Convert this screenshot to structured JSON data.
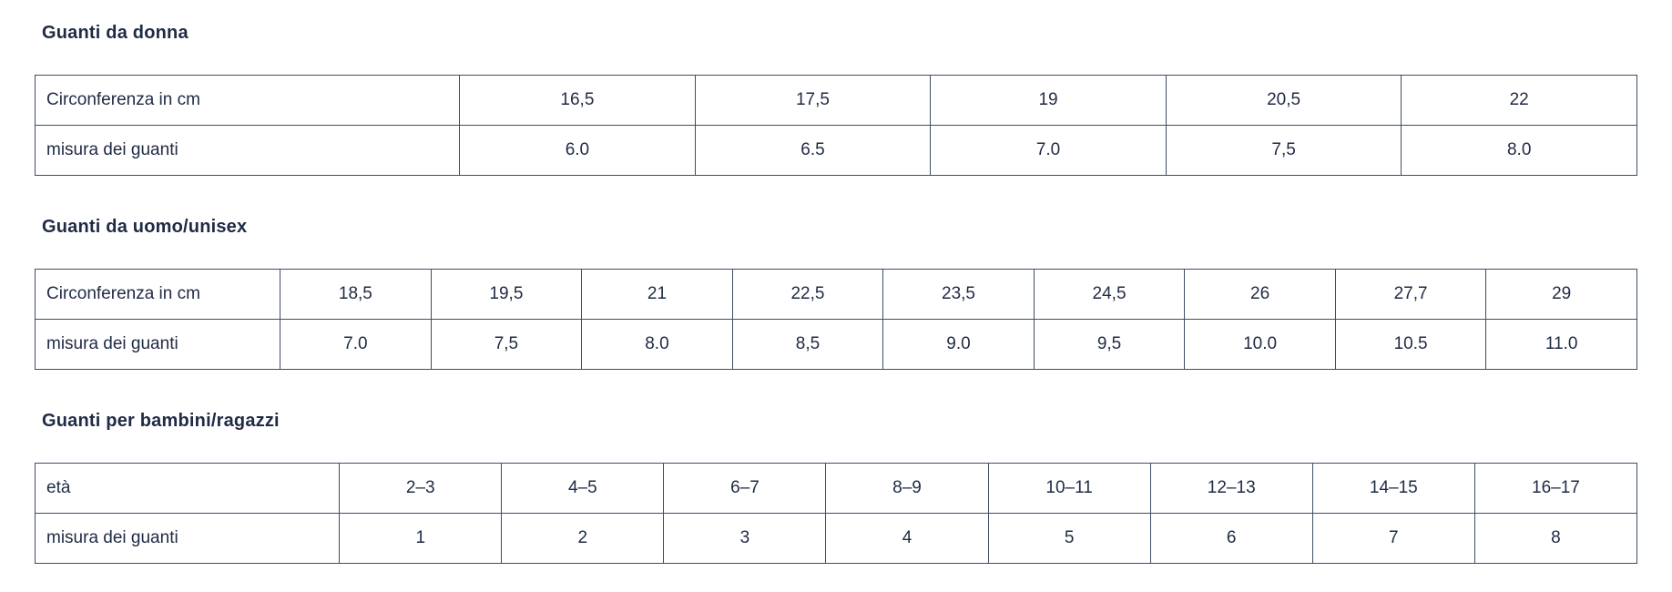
{
  "page": {
    "background_color": "#ffffff",
    "text_color": "#1f2a44",
    "table_border_color": "#3f4d66"
  },
  "sections": [
    {
      "title": "Guanti da donna",
      "table": {
        "rows": [
          {
            "header": "Circonferenza in cm",
            "cells": [
              "16,5",
              "17,5",
              "19",
              "20,5",
              "22"
            ]
          },
          {
            "header": "misura dei guanti",
            "cells": [
              "6.0",
              "6.5",
              "7.0",
              "7,5",
              "8.0"
            ]
          }
        ]
      }
    },
    {
      "title": "Guanti da uomo/unisex",
      "table": {
        "rows": [
          {
            "header": "Circonferenza in cm",
            "cells": [
              "18,5",
              "19,5",
              "21",
              "22,5",
              "23,5",
              "24,5",
              "26",
              "27,7",
              "29"
            ]
          },
          {
            "header": "misura dei guanti",
            "cells": [
              "7.0",
              "7,5",
              "8.0",
              "8,5",
              "9.0",
              "9,5",
              "10.0",
              "10.5",
              "11.0"
            ]
          }
        ]
      }
    },
    {
      "title": "Guanti per bambini/ragazzi",
      "table": {
        "rows": [
          {
            "header": "età",
            "cells": [
              "2–3",
              "4–5",
              "6–7",
              "8–9",
              "10–11",
              "12–13",
              "14–15",
              "16–17"
            ]
          },
          {
            "header": "misura dei guanti",
            "cells": [
              "1",
              "2",
              "3",
              "4",
              "5",
              "6",
              "7",
              "8"
            ]
          }
        ]
      }
    }
  ]
}
